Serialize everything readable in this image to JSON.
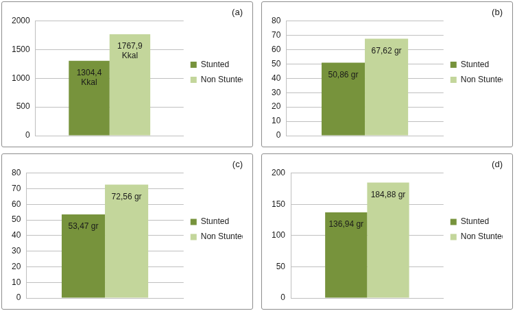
{
  "chart_data": [
    {
      "type": "bar",
      "title": "(a)",
      "categories": [
        null
      ],
      "series": [
        {
          "name": "Stunted",
          "color": "#77933c",
          "values": [
            1304.4
          ],
          "value_labels": [
            "1304,4 Kkal"
          ]
        },
        {
          "name": "Non Stunted",
          "color": "#c3d69b",
          "values": [
            1767.9
          ],
          "value_labels": [
            "1767,9 Kkal"
          ]
        }
      ],
      "ylim": [
        0,
        2000
      ],
      "yticks": [
        0,
        500,
        1000,
        1500,
        2000
      ],
      "grid": true,
      "legend": "right",
      "data_labels": true,
      "tick_labels": "y"
    },
    {
      "type": "bar",
      "title": "(b)",
      "categories": [
        null
      ],
      "series": [
        {
          "name": "Stunted",
          "color": "#77933c",
          "values": [
            50.86
          ],
          "value_labels": [
            "50,86 gr"
          ]
        },
        {
          "name": "Non Stunted",
          "color": "#c3d69b",
          "values": [
            67.62
          ],
          "value_labels": [
            "67,62 gr"
          ]
        }
      ],
      "ylim": [
        0,
        80
      ],
      "yticks": [
        0,
        10,
        20,
        30,
        40,
        50,
        60,
        70,
        80
      ],
      "grid": true,
      "legend": "right",
      "data_labels": true,
      "tick_labels": "y"
    },
    {
      "type": "bar",
      "title": "(c)",
      "categories": [
        null
      ],
      "series": [
        {
          "name": "Stunted",
          "color": "#77933c",
          "values": [
            53.47
          ],
          "value_labels": [
            "53,47 gr"
          ]
        },
        {
          "name": "Non Stunted",
          "color": "#c3d69b",
          "values": [
            72.56
          ],
          "value_labels": [
            "72,56 gr"
          ]
        }
      ],
      "ylim": [
        0,
        80
      ],
      "yticks": [
        0,
        10,
        20,
        30,
        40,
        50,
        60,
        70,
        80
      ],
      "grid": true,
      "legend": "right",
      "data_labels": true,
      "tick_labels": "y"
    },
    {
      "type": "bar",
      "title": "(d)",
      "categories": [
        null
      ],
      "series": [
        {
          "name": "Stunted",
          "color": "#77933c",
          "values": [
            136.94
          ],
          "value_labels": [
            "136,94 gr"
          ]
        },
        {
          "name": "Non Stunted",
          "color": "#c3d69b",
          "values": [
            184.88
          ],
          "value_labels": [
            "184,88 gr"
          ]
        }
      ],
      "ylim": [
        0,
        200
      ],
      "yticks": [
        0,
        50,
        100,
        150,
        200
      ],
      "grid": true,
      "legend": "right",
      "data_labels": true,
      "tick_labels": "y"
    }
  ]
}
